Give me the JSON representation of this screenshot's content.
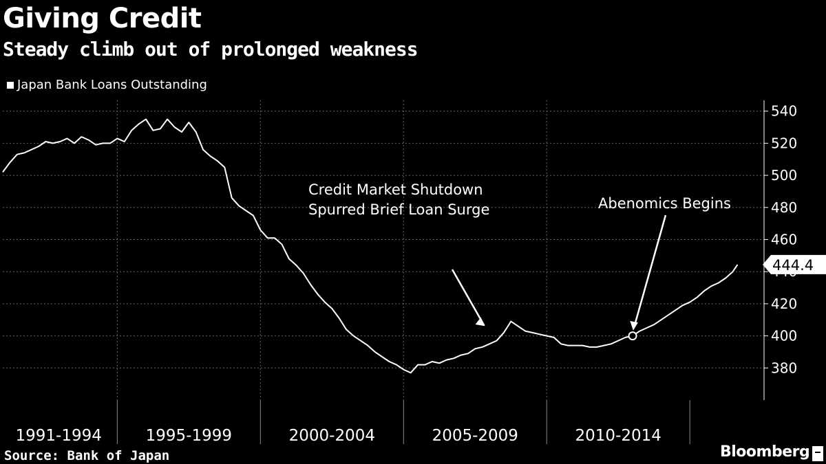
{
  "chart_data": {
    "type": "line",
    "title": "Giving Credit",
    "subtitle": "Steady climb out of prolonged weakness",
    "series": [
      {
        "name": "Japan Bank Loans Outstanding",
        "x": [
          "1991-01",
          "1991-04",
          "1991-07",
          "1991-10",
          "1992-01",
          "1992-04",
          "1992-07",
          "1992-10",
          "1993-01",
          "1993-04",
          "1993-07",
          "1993-10",
          "1994-01",
          "1994-04",
          "1994-07",
          "1994-10",
          "1995-01",
          "1995-04",
          "1995-07",
          "1995-10",
          "1996-01",
          "1996-04",
          "1996-07",
          "1996-10",
          "1997-01",
          "1997-04",
          "1997-07",
          "1997-10",
          "1998-01",
          "1998-04",
          "1998-07",
          "1998-10",
          "1999-01",
          "1999-04",
          "1999-07",
          "1999-10",
          "2000-01",
          "2000-04",
          "2000-07",
          "2000-10",
          "2001-01",
          "2001-04",
          "2001-07",
          "2001-10",
          "2002-01",
          "2002-04",
          "2002-07",
          "2002-10",
          "2003-01",
          "2003-04",
          "2003-07",
          "2003-10",
          "2004-01",
          "2004-04",
          "2004-07",
          "2004-10",
          "2005-01",
          "2005-04",
          "2005-07",
          "2005-10",
          "2006-01",
          "2006-04",
          "2006-07",
          "2006-10",
          "2007-01",
          "2007-04",
          "2007-07",
          "2007-10",
          "2008-01",
          "2008-04",
          "2008-07",
          "2008-10",
          "2009-01",
          "2009-04",
          "2009-07",
          "2009-10",
          "2010-01",
          "2010-04",
          "2010-07",
          "2010-10",
          "2011-01",
          "2011-04",
          "2011-07",
          "2011-10",
          "2012-01",
          "2012-04",
          "2012-07",
          "2012-10",
          "2013-01",
          "2013-04",
          "2013-07",
          "2013-10",
          "2014-01",
          "2014-04",
          "2014-07",
          "2014-10",
          "2015-01",
          "2015-04",
          "2015-07",
          "2015-10",
          "2016-01",
          "2016-04",
          "2016-07",
          "2016-09"
        ],
        "values": [
          502,
          508,
          513,
          514,
          516,
          518,
          521,
          520,
          521,
          523,
          520,
          524,
          522,
          519,
          520,
          520,
          523,
          521,
          528,
          532,
          535,
          528,
          529,
          535,
          530,
          527,
          533,
          527,
          516,
          512,
          509,
          505,
          486,
          481,
          478,
          475,
          466,
          461,
          461,
          457,
          448,
          444,
          439,
          432,
          426,
          421,
          417,
          411,
          404,
          400,
          397,
          394,
          390,
          387,
          384,
          382,
          379,
          377,
          382,
          382,
          384,
          383,
          385,
          386,
          388,
          389,
          392,
          393,
          395,
          397,
          402,
          409,
          406,
          403,
          402,
          401,
          400,
          399,
          395,
          394,
          394,
          394,
          393,
          393,
          394,
          395,
          397,
          399,
          400,
          403,
          405,
          407,
          410,
          413,
          416,
          419,
          421,
          424,
          428,
          431,
          433,
          436,
          440,
          444.4
        ]
      }
    ],
    "ylim": [
      360,
      545
    ],
    "yticks": [
      380,
      400,
      420,
      440,
      460,
      480,
      500,
      520,
      540
    ],
    "last_value_label": "444.4",
    "period_labels": [
      {
        "label": "1991-1994",
        "start": "1991-01"
      },
      {
        "label": "1995-1999",
        "start": "1995-01"
      },
      {
        "label": "2000-2004",
        "start": "2000-01"
      },
      {
        "label": "2005-2009",
        "start": "2005-01"
      },
      {
        "label": "2010-2014",
        "start": "2010-01"
      }
    ],
    "annotations": [
      {
        "lines": [
          "Credit Market Shutdown",
          "Spurred Brief Loan Surge"
        ],
        "point": "2008-04"
      },
      {
        "lines": [
          "Abenomics Begins"
        ],
        "point": "2013-01"
      }
    ],
    "grid": true,
    "legend_position": "top-left"
  },
  "source": "Source: Bank of Japan",
  "brand": "Bloomberg",
  "colors": {
    "background": "#000000",
    "line": "#ffffff",
    "grid": "#666666"
  }
}
